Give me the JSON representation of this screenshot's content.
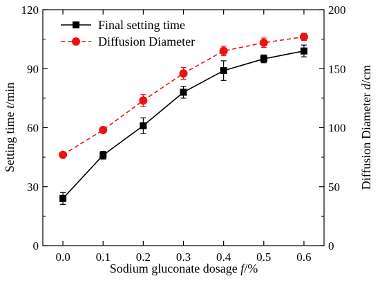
{
  "chart_data": {
    "type": "line",
    "x": [
      0.0,
      0.1,
      0.2,
      0.3,
      0.4,
      0.5,
      0.6
    ],
    "x_tick_labels": [
      "0.0",
      "0.1",
      "0.2",
      "0.3",
      "0.4",
      "0.5",
      "0.6"
    ],
    "xlim": [
      -0.05,
      0.65
    ],
    "xlabel": {
      "prefix": "Sodium gluconate dosage ",
      "italic": "f",
      "suffix": "/%"
    },
    "y_left": {
      "label": {
        "prefix": "Setting time ",
        "italic": "t",
        "suffix": "/min"
      },
      "ylim": [
        0,
        120
      ],
      "ticks": [
        0,
        30,
        60,
        90,
        120
      ],
      "tick_labels": [
        "0",
        "30",
        "60",
        "90",
        "120"
      ]
    },
    "y_right": {
      "label": {
        "prefix": "Diffusion Diameter ",
        "italic": "d",
        "suffix": "/cm"
      },
      "ylim": [
        0,
        200
      ],
      "ticks": [
        0,
        50,
        100,
        150,
        200
      ],
      "tick_labels": [
        "0",
        "50",
        "100",
        "150",
        "200"
      ]
    },
    "grid": false,
    "legend_position": "top-left",
    "series": [
      {
        "name": "Final setting time",
        "axis": "left",
        "color": "#000000",
        "marker": "square",
        "line_style": "solid",
        "values": [
          24,
          46,
          61,
          78,
          89,
          95,
          99
        ],
        "errors": [
          3,
          2,
          4,
          3,
          5,
          2,
          3
        ]
      },
      {
        "name": "Diffusion Diameter",
        "axis": "right",
        "color": "#ee1111",
        "marker": "circle",
        "line_style": "dashed",
        "values": [
          77,
          98,
          123,
          146,
          165,
          172,
          177
        ],
        "errors": [
          1.5,
          2,
          5,
          5,
          4,
          4,
          3
        ]
      }
    ]
  }
}
